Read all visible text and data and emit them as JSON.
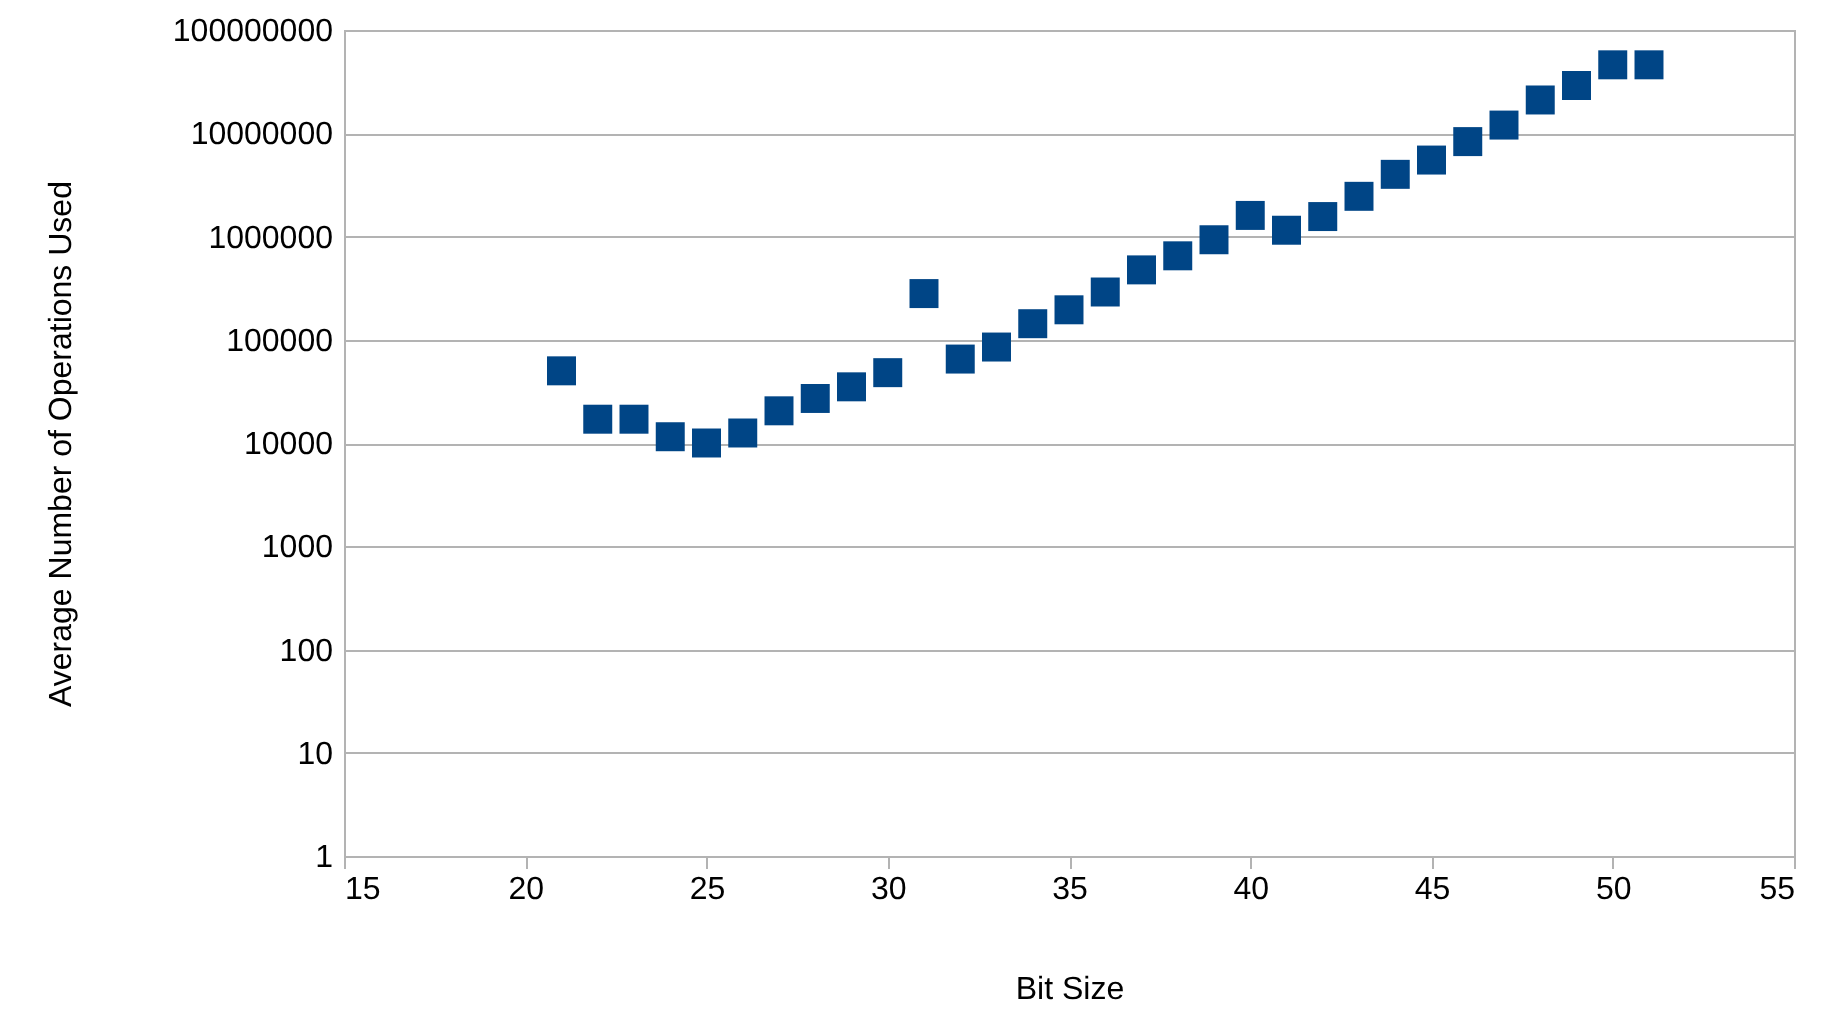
{
  "chart_data": {
    "type": "scatter",
    "xlabel": "Bit Size",
    "ylabel": "Average Number of Operations Used",
    "x": [
      21,
      22,
      23,
      24,
      25,
      26,
      27,
      28,
      29,
      30,
      31,
      32,
      33,
      34,
      35,
      36,
      37,
      38,
      39,
      40,
      41,
      42,
      43,
      44,
      45,
      46,
      47,
      48,
      49,
      50,
      51
    ],
    "series": [
      {
        "color": "#004586",
        "values": [
          50000,
          17000,
          17000,
          11500,
          10000,
          12500,
          20500,
          27000,
          35000,
          48000,
          280000,
          65000,
          85000,
          143000,
          195000,
          290000,
          475000,
          650000,
          930000,
          1600000,
          1150000,
          1560000,
          2450000,
          4000000,
          5500000,
          8300000,
          12000000,
          21000000,
          29000000,
          46000000,
          46000000
        ]
      }
    ],
    "xlim": [
      15,
      55
    ],
    "xticks": [
      15,
      20,
      25,
      30,
      35,
      40,
      45,
      50,
      55
    ],
    "ylim": [
      1,
      100000000
    ],
    "yticks": [
      1,
      10,
      100,
      1000,
      10000,
      100000,
      1000000,
      10000000,
      100000000
    ],
    "log": "y",
    "grid": "y",
    "marker": "square"
  }
}
